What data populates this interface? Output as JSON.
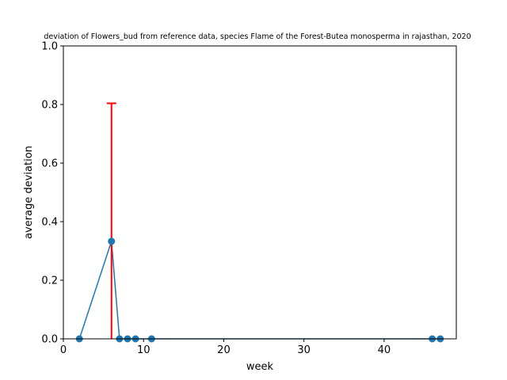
{
  "chart_data": {
    "type": "line",
    "title": "deviation of Flowers_bud from reference data, species Flame of the Forest-Butea monosperma in rajasthan, 2020",
    "xlabel": "week",
    "ylabel": "average deviation",
    "xlim": [
      0,
      49
    ],
    "ylim": [
      0,
      1.0
    ],
    "xticks": [
      0,
      10,
      20,
      30,
      40
    ],
    "yticks": [
      0.0,
      0.2,
      0.4,
      0.6,
      0.8,
      1.0
    ],
    "xtick_labels": [
      "0",
      "10",
      "20",
      "30",
      "40"
    ],
    "ytick_labels": [
      "0.0",
      "0.2",
      "0.4",
      "0.6",
      "0.8",
      "1.0"
    ],
    "grid": false,
    "series": [
      {
        "x": [
          2,
          6,
          7,
          8,
          9,
          11,
          46,
          47
        ],
        "values": [
          0,
          0.333,
          0,
          0,
          0,
          0,
          0,
          0
        ],
        "color": "#1f77b4",
        "error": [
          null,
          0.471,
          null,
          null,
          null,
          null,
          null,
          null
        ],
        "error_color": "#ff0000"
      }
    ]
  }
}
